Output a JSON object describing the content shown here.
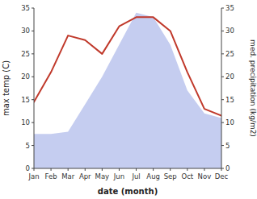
{
  "chart_data": {
    "type": "line",
    "xlabel": "date (month)",
    "ylabel": "max temp (C)",
    "y2label": "med. precipitation (kg/m2)",
    "categories": [
      "Jan",
      "Feb",
      "Mar",
      "Apr",
      "May",
      "Jun",
      "Jul",
      "Aug",
      "Sep",
      "Oct",
      "Nov",
      "Dec"
    ],
    "series": [
      {
        "type": "area",
        "axis": "y2",
        "color": "#c5cdf0",
        "values": [
          7.5,
          7.5,
          8.0,
          14.0,
          20.0,
          27.0,
          34.0,
          33.0,
          27.0,
          17.0,
          12.0,
          11.0
        ]
      },
      {
        "type": "line",
        "color": "#c0392b",
        "values": [
          14.5,
          21.0,
          29.0,
          28.0,
          25.0,
          31.0,
          33.0,
          33.0,
          30.0,
          21.0,
          13.0,
          11.5
        ]
      }
    ],
    "ylim": [
      0,
      35
    ],
    "yticks": [
      0,
      5,
      10,
      15,
      20,
      25,
      30,
      35
    ],
    "y2lim": [
      0,
      35
    ],
    "y2ticks": [
      0,
      5,
      10,
      15,
      20,
      25,
      30,
      35
    ],
    "grid": false
  }
}
